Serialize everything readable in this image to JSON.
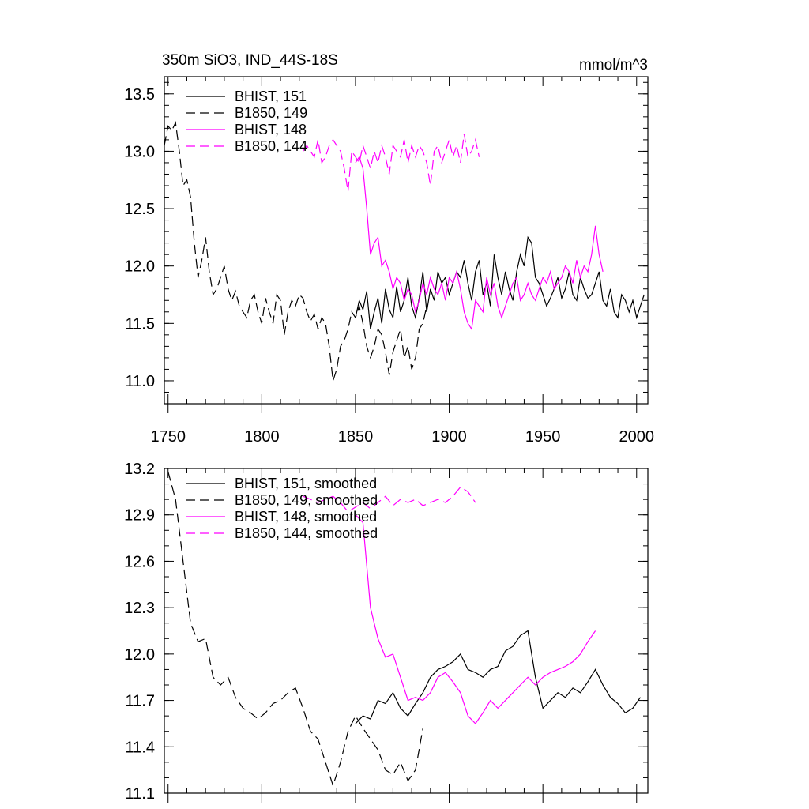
{
  "colors": {
    "bhist": "#000000",
    "b1850": "#000000",
    "bhist_magenta": "#ff00ff",
    "b1850_magenta": "#ff00ff"
  },
  "chart_data": [
    {
      "type": "line",
      "title": "350m SiO3, IND_44S-18S",
      "units": "mmol/m^3",
      "xlim": [
        1748,
        2006
      ],
      "ylim": [
        10.8,
        13.65
      ],
      "xticks": [
        1750,
        1800,
        1850,
        1900,
        1950,
        2000
      ],
      "xtick_labels": [
        "1750",
        "1800",
        "1850",
        "1900",
        "1950",
        "2000"
      ],
      "yticks": [
        11.0,
        11.5,
        12.0,
        12.5,
        13.0,
        13.5
      ],
      "ytick_labels": [
        "11.0",
        "11.5",
        "12.0",
        "12.5",
        "13.0",
        "13.5"
      ],
      "legend_position": "top-left",
      "series": [
        {
          "name": "BHIST, 151",
          "color": "#000000",
          "dash": "solid",
          "x": [
            1850,
            1852,
            1854,
            1856,
            1858,
            1860,
            1862,
            1864,
            1866,
            1868,
            1870,
            1872,
            1874,
            1876,
            1878,
            1880,
            1882,
            1884,
            1886,
            1888,
            1890,
            1892,
            1894,
            1896,
            1898,
            1900,
            1902,
            1904,
            1906,
            1908,
            1910,
            1912,
            1914,
            1916,
            1918,
            1920,
            1922,
            1924,
            1926,
            1928,
            1930,
            1932,
            1934,
            1936,
            1938,
            1940,
            1942,
            1944,
            1946,
            1948,
            1950,
            1952,
            1954,
            1956,
            1958,
            1960,
            1962,
            1964,
            1966,
            1968,
            1970,
            1972,
            1974,
            1976,
            1978,
            1980,
            1982,
            1984,
            1986,
            1988,
            1990,
            1992,
            1994,
            1996,
            1998,
            2000,
            2002,
            2004
          ],
          "y": [
            11.55,
            11.7,
            11.62,
            11.78,
            11.45,
            11.6,
            11.72,
            11.5,
            11.8,
            11.62,
            11.55,
            11.82,
            11.6,
            11.7,
            11.9,
            11.65,
            11.55,
            11.72,
            11.95,
            11.6,
            11.8,
            11.7,
            11.95,
            11.85,
            11.9,
            11.75,
            11.85,
            11.95,
            11.9,
            12.05,
            11.85,
            11.7,
            11.95,
            12.05,
            11.75,
            11.85,
            11.65,
            12.1,
            11.9,
            11.75,
            11.95,
            11.8,
            11.7,
            11.95,
            12.1,
            12.0,
            12.25,
            12.2,
            11.9,
            11.85,
            11.75,
            11.65,
            11.72,
            11.8,
            11.9,
            11.72,
            11.8,
            11.95,
            11.75,
            11.7,
            11.9,
            11.8,
            11.72,
            11.75,
            11.85,
            11.95,
            11.7,
            11.65,
            11.8,
            11.6,
            11.55,
            11.75,
            11.7,
            11.6,
            11.7,
            11.55,
            11.65,
            11.75
          ]
        },
        {
          "name": "B1850, 149",
          "color": "#000000",
          "dash": "dashed",
          "x": [
            1748,
            1750,
            1752,
            1754,
            1756,
            1758,
            1760,
            1762,
            1764,
            1766,
            1768,
            1770,
            1772,
            1774,
            1776,
            1778,
            1780,
            1782,
            1784,
            1786,
            1788,
            1790,
            1792,
            1794,
            1796,
            1798,
            1800,
            1802,
            1804,
            1806,
            1808,
            1810,
            1812,
            1814,
            1816,
            1818,
            1820,
            1822,
            1824,
            1826,
            1828,
            1830,
            1832,
            1834,
            1836,
            1838,
            1840,
            1842,
            1844,
            1846,
            1848,
            1850,
            1852,
            1854,
            1856,
            1858,
            1860,
            1862,
            1864,
            1866,
            1868,
            1870,
            1872,
            1874,
            1876,
            1878,
            1880,
            1882,
            1884,
            1886,
            1888
          ],
          "y": [
            13.05,
            13.22,
            13.18,
            13.25,
            13.0,
            12.7,
            12.75,
            12.6,
            12.2,
            11.9,
            12.05,
            12.25,
            11.95,
            11.75,
            11.8,
            11.9,
            12.0,
            11.8,
            11.7,
            11.78,
            11.65,
            11.6,
            11.55,
            11.7,
            11.75,
            11.6,
            11.5,
            11.72,
            11.6,
            11.5,
            11.75,
            11.7,
            11.4,
            11.6,
            11.7,
            11.65,
            11.75,
            11.72,
            11.6,
            11.52,
            11.58,
            11.45,
            11.55,
            11.5,
            11.3,
            11.0,
            11.1,
            11.3,
            11.35,
            11.45,
            11.6,
            11.55,
            11.65,
            11.5,
            11.3,
            11.2,
            11.3,
            11.45,
            11.4,
            11.25,
            11.05,
            11.25,
            11.35,
            11.45,
            11.2,
            11.3,
            11.1,
            11.2,
            11.45,
            11.5,
            11.65
          ]
        },
        {
          "name": "BHIST, 148",
          "color": "#ff00ff",
          "dash": "solid",
          "x": [
            1850,
            1852,
            1854,
            1856,
            1858,
            1860,
            1862,
            1864,
            1866,
            1868,
            1870,
            1872,
            1874,
            1876,
            1878,
            1880,
            1882,
            1884,
            1886,
            1888,
            1890,
            1892,
            1894,
            1896,
            1898,
            1900,
            1902,
            1904,
            1906,
            1908,
            1910,
            1912,
            1914,
            1916,
            1918,
            1920,
            1922,
            1924,
            1926,
            1928,
            1930,
            1932,
            1934,
            1936,
            1938,
            1940,
            1942,
            1944,
            1946,
            1948,
            1950,
            1952,
            1954,
            1956,
            1958,
            1960,
            1962,
            1964,
            1966,
            1968,
            1970,
            1972,
            1974,
            1976,
            1978,
            1980,
            1982
          ],
          "y": [
            12.9,
            12.95,
            12.85,
            12.5,
            12.1,
            12.2,
            12.25,
            12.0,
            12.05,
            11.95,
            11.8,
            11.9,
            11.85,
            11.7,
            11.8,
            11.75,
            11.6,
            11.7,
            11.85,
            11.75,
            11.9,
            11.8,
            11.75,
            11.85,
            11.7,
            11.9,
            11.85,
            11.95,
            11.8,
            11.6,
            11.5,
            11.45,
            11.7,
            11.65,
            11.6,
            11.9,
            11.75,
            11.85,
            11.65,
            11.55,
            11.65,
            11.75,
            11.85,
            11.9,
            11.7,
            11.75,
            11.85,
            11.75,
            11.7,
            11.8,
            11.9,
            11.85,
            11.95,
            11.8,
            11.85,
            11.9,
            12.0,
            11.95,
            11.85,
            12.05,
            11.9,
            12.0,
            11.95,
            12.1,
            12.35,
            12.1,
            11.95
          ]
        },
        {
          "name": "B1850, 144",
          "color": "#ff00ff",
          "dash": "dashed",
          "x": [
            1822,
            1824,
            1826,
            1828,
            1830,
            1832,
            1834,
            1836,
            1838,
            1840,
            1842,
            1844,
            1846,
            1848,
            1850,
            1852,
            1854,
            1856,
            1858,
            1860,
            1862,
            1864,
            1866,
            1868,
            1870,
            1872,
            1874,
            1876,
            1878,
            1880,
            1882,
            1884,
            1886,
            1888,
            1890,
            1892,
            1894,
            1896,
            1898,
            1900,
            1902,
            1904,
            1906,
            1908,
            1910,
            1912,
            1914,
            1916
          ],
          "y": [
            13.0,
            13.05,
            13.0,
            12.95,
            13.1,
            12.9,
            12.95,
            13.05,
            13.1,
            13.05,
            13.0,
            12.85,
            12.65,
            13.0,
            12.95,
            12.9,
            13.05,
            12.95,
            12.85,
            13.0,
            12.9,
            13.05,
            12.95,
            12.8,
            13.05,
            13.0,
            12.95,
            13.1,
            12.9,
            13.05,
            12.95,
            13.05,
            13.0,
            12.9,
            12.7,
            13.0,
            13.05,
            12.9,
            13.0,
            13.1,
            12.95,
            13.05,
            12.9,
            13.15,
            12.95,
            13.0,
            13.1,
            12.95
          ]
        }
      ]
    },
    {
      "type": "line",
      "xlim": [
        1748,
        2006
      ],
      "ylim": [
        11.1,
        13.2
      ],
      "yticks": [
        11.1,
        11.4,
        11.7,
        12.0,
        12.3,
        12.6,
        12.9,
        13.2
      ],
      "ytick_labels": [
        "11.1",
        "11.4",
        "11.7",
        "12.0",
        "12.3",
        "12.6",
        "12.9",
        "13.2"
      ],
      "xticks": [
        1750,
        1800,
        1850,
        1900,
        1950,
        2000
      ],
      "legend_position": "top-left",
      "series": [
        {
          "name": "BHIST, 151, smoothed",
          "color": "#000000",
          "dash": "solid",
          "x": [
            1850,
            1854,
            1858,
            1862,
            1866,
            1870,
            1874,
            1878,
            1882,
            1886,
            1890,
            1894,
            1898,
            1902,
            1906,
            1910,
            1914,
            1918,
            1922,
            1926,
            1930,
            1934,
            1938,
            1942,
            1946,
            1950,
            1954,
            1958,
            1962,
            1966,
            1970,
            1974,
            1978,
            1982,
            1986,
            1990,
            1994,
            1998,
            2002
          ],
          "y": [
            11.55,
            11.6,
            11.58,
            11.7,
            11.68,
            11.75,
            11.65,
            11.6,
            11.68,
            11.75,
            11.85,
            11.9,
            11.92,
            11.95,
            12.0,
            11.9,
            11.88,
            11.85,
            11.9,
            11.92,
            12.02,
            12.05,
            12.12,
            12.15,
            11.85,
            11.65,
            11.7,
            11.75,
            11.72,
            11.78,
            11.75,
            11.82,
            11.9,
            11.8,
            11.72,
            11.68,
            11.62,
            11.65,
            11.72
          ]
        },
        {
          "name": "B1850, 149, smoothed",
          "color": "#000000",
          "dash": "dashed",
          "x": [
            1750,
            1754,
            1758,
            1762,
            1766,
            1770,
            1774,
            1778,
            1782,
            1786,
            1790,
            1794,
            1798,
            1802,
            1806,
            1810,
            1814,
            1818,
            1822,
            1826,
            1830,
            1834,
            1838,
            1842,
            1846,
            1850,
            1854,
            1858,
            1862,
            1866,
            1870,
            1874,
            1878,
            1882,
            1886
          ],
          "y": [
            13.18,
            13.0,
            12.6,
            12.2,
            12.08,
            12.1,
            11.85,
            11.8,
            11.85,
            11.72,
            11.65,
            11.62,
            11.58,
            11.62,
            11.68,
            11.7,
            11.75,
            11.78,
            11.65,
            11.5,
            11.45,
            11.3,
            11.15,
            11.3,
            11.5,
            11.6,
            11.52,
            11.45,
            11.38,
            11.25,
            11.22,
            11.3,
            11.18,
            11.25,
            11.52
          ]
        },
        {
          "name": "BHIST, 148, smoothed",
          "color": "#ff00ff",
          "dash": "solid",
          "x": [
            1850,
            1854,
            1858,
            1862,
            1866,
            1870,
            1874,
            1878,
            1882,
            1886,
            1890,
            1894,
            1898,
            1902,
            1906,
            1910,
            1914,
            1918,
            1922,
            1926,
            1930,
            1934,
            1938,
            1942,
            1946,
            1950,
            1954,
            1958,
            1962,
            1966,
            1970,
            1974,
            1978
          ],
          "y": [
            12.9,
            12.85,
            12.3,
            12.1,
            11.98,
            12.0,
            11.85,
            11.7,
            11.72,
            11.7,
            11.75,
            11.85,
            11.88,
            11.82,
            11.75,
            11.6,
            11.55,
            11.62,
            11.7,
            11.65,
            11.7,
            11.75,
            11.8,
            11.85,
            11.8,
            11.85,
            11.88,
            11.9,
            11.92,
            11.95,
            12.0,
            12.08,
            12.15
          ]
        },
        {
          "name": "B1850, 144, smoothed",
          "color": "#ff00ff",
          "dash": "dashed",
          "x": [
            1822,
            1826,
            1830,
            1834,
            1838,
            1842,
            1846,
            1850,
            1854,
            1858,
            1862,
            1866,
            1870,
            1874,
            1878,
            1882,
            1886,
            1890,
            1894,
            1898,
            1902,
            1906,
            1910,
            1914
          ],
          "y": [
            13.02,
            13.0,
            12.98,
            13.0,
            13.02,
            12.98,
            12.92,
            12.95,
            12.98,
            12.94,
            12.98,
            13.02,
            12.96,
            13.0,
            12.98,
            13.0,
            12.96,
            12.98,
            13.0,
            12.98,
            13.02,
            13.08,
            13.05,
            12.98
          ]
        }
      ]
    }
  ]
}
